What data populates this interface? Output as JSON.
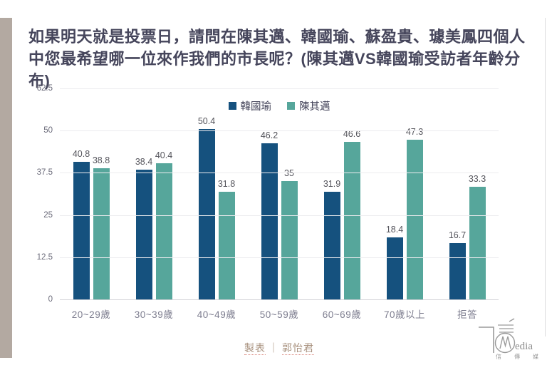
{
  "header": {
    "title": "如果明天就是投票日，請問在陳其邁、韓國瑜、蘇盈貴、璩美鳳四個人中您最希望哪一位來作我們的市長呢？(陳其邁VS韓國瑜受訪者年齡分布)"
  },
  "chart_data": {
    "type": "bar",
    "title": "陳其邁VS韓國瑜受訪者年齡分布",
    "categories": [
      "20~29歲",
      "30~39歲",
      "40~49歲",
      "50~59歲",
      "60~69歲",
      "70歲以上",
      "拒答"
    ],
    "series": [
      {
        "name": "韓國瑜",
        "color": "#15517e",
        "values": [
          40.8,
          38.4,
          50.4,
          46.2,
          31.9,
          18.4,
          16.7
        ]
      },
      {
        "name": "陳其邁",
        "color": "#56a69b",
        "values": [
          38.8,
          40.4,
          31.8,
          35,
          46.6,
          47.3,
          33.3
        ]
      }
    ],
    "ylim": [
      0,
      62.5
    ],
    "yticks": [
      0,
      12.5,
      25,
      37.5,
      50,
      62.5
    ],
    "grid": true,
    "legend_position": "top-center"
  },
  "footer": {
    "credit_label": "製表",
    "separator": "｜",
    "author": "郭怡君"
  },
  "logo": {
    "brand_text": "edia",
    "circle_letter": "M",
    "chinese_chars": "信 傳 媒"
  },
  "colors": {
    "accent_bar": "#b3a9a1",
    "series_han": "#15517e",
    "series_chen": "#56a69b",
    "title_text": "#45455b",
    "credit_text": "#a8917e"
  }
}
